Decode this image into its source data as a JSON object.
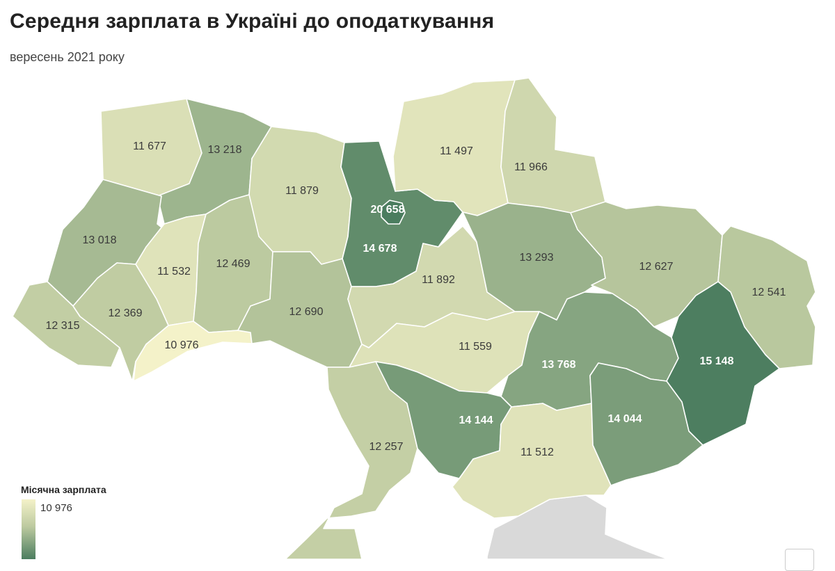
{
  "title": "Середня зарплата в Україні до оподаткування",
  "subtitle": "вересень 2021 року",
  "legend": {
    "title": "Місячна зарплата",
    "min_label": "10 976",
    "min_value": 10976,
    "max_value": 20658,
    "color_min": "#f4f2c9",
    "color_mid": "#bdcaa0",
    "color_max": "#4b7d5f"
  },
  "regions": [
    {
      "id": "volyn",
      "label": "11 677",
      "value": 11677
    },
    {
      "id": "rivne",
      "label": "13 218",
      "value": 13218
    },
    {
      "id": "zhytomyr",
      "label": "11 879",
      "value": 11879
    },
    {
      "id": "kyiv-oblast",
      "label": "14 678",
      "value": 14678
    },
    {
      "id": "kyiv-city",
      "label": "20 658",
      "value": 20658
    },
    {
      "id": "chernihiv",
      "label": "11 497",
      "value": 11497
    },
    {
      "id": "sumy",
      "label": "11 966",
      "value": 11966
    },
    {
      "id": "lviv",
      "label": "13 018",
      "value": 13018
    },
    {
      "id": "ternopil",
      "label": "11 532",
      "value": 11532
    },
    {
      "id": "khmelnytskyi",
      "label": "12 469",
      "value": 12469
    },
    {
      "id": "zakarpattia",
      "label": "12 315",
      "value": 12315
    },
    {
      "id": "ivano-frankivsk",
      "label": "12 369",
      "value": 12369
    },
    {
      "id": "chernivtsi",
      "label": "10 976",
      "value": 10976
    },
    {
      "id": "vinnytsia",
      "label": "12 690",
      "value": 12690
    },
    {
      "id": "cherkasy",
      "label": "11 892",
      "value": 11892
    },
    {
      "id": "poltava",
      "label": "13 293",
      "value": 13293
    },
    {
      "id": "kharkiv",
      "label": "12 627",
      "value": 12627
    },
    {
      "id": "luhansk",
      "label": "12 541",
      "value": 12541
    },
    {
      "id": "kirovohrad",
      "label": "11 559",
      "value": 11559
    },
    {
      "id": "dnipropetrovsk",
      "label": "13 768",
      "value": 13768
    },
    {
      "id": "donetsk",
      "label": "15 148",
      "value": 15148
    },
    {
      "id": "odesa",
      "label": "12 257",
      "value": 12257
    },
    {
      "id": "mykolaiv",
      "label": "14 144",
      "value": 14144
    },
    {
      "id": "kherson",
      "label": "11 512",
      "value": 11512
    },
    {
      "id": "zaporizhzhia",
      "label": "14 044",
      "value": 14044
    }
  ]
}
